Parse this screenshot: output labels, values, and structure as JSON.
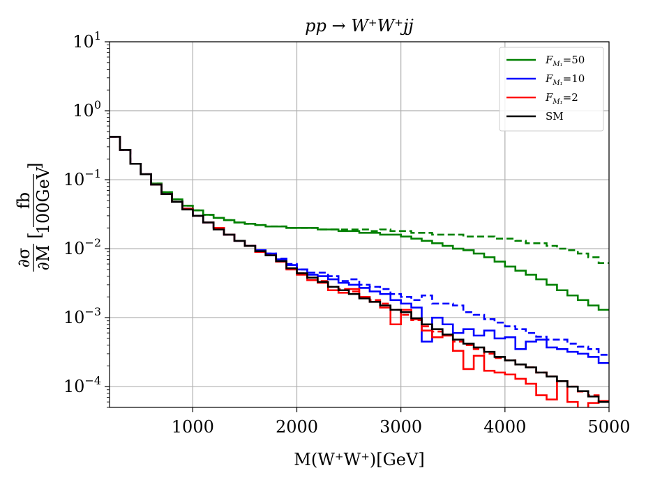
{
  "chart_data": {
    "type": "line",
    "step": true,
    "title": "pp → W⁺W⁺jj",
    "xlabel": "M(W⁺W⁺)[GeV]",
    "ylabel": "∂σ/∂M [fb/100GeV]",
    "ylabel_parts": {
      "numer": "∂σ",
      "denom": "∂M",
      "unit_numer": "fb",
      "unit_denom": "100GeV"
    },
    "xlim": [
      200,
      5000
    ],
    "ylim": [
      5e-05,
      10
    ],
    "yscale": "log",
    "grid": true,
    "legend_position": "top-right",
    "x_ticks": [
      1000,
      2000,
      3000,
      4000,
      5000
    ],
    "x_tick_labels": [
      "1000",
      "2000",
      "3000",
      "4000",
      "5000"
    ],
    "y_ticks": [
      0.0001,
      0.001,
      0.01,
      0.1,
      1,
      10
    ],
    "y_tick_labels": [
      {
        "base": "10",
        "exp": "−4"
      },
      {
        "base": "10",
        "exp": "−3"
      },
      {
        "base": "10",
        "exp": "−2"
      },
      {
        "base": "10",
        "exp": "−1"
      },
      {
        "base": "10",
        "exp": "0"
      },
      {
        "base": "10",
        "exp": "1"
      }
    ],
    "x_bin_edges": [
      200,
      300,
      400,
      500,
      600,
      700,
      800,
      900,
      1000,
      1100,
      1200,
      1300,
      1400,
      1500,
      1600,
      1700,
      1800,
      1900,
      2000,
      2100,
      2200,
      2300,
      2400,
      2500,
      2600,
      2700,
      2800,
      2900,
      3000,
      3100,
      3200,
      3300,
      3400,
      3500,
      3600,
      3700,
      3800,
      3900,
      4000,
      4100,
      4200,
      4300,
      4400,
      4500,
      4600,
      4700,
      4800,
      4900,
      5000
    ],
    "series": [
      {
        "name": "F_M1=50",
        "label_main": "F",
        "label_sub": "M₁",
        "label_value": "=50",
        "color": "#008000",
        "style": "solid",
        "values": [
          0.42,
          0.27,
          0.17,
          0.12,
          0.088,
          0.066,
          0.052,
          0.042,
          0.036,
          0.031,
          0.028,
          0.026,
          0.024,
          0.023,
          0.022,
          0.021,
          0.021,
          0.02,
          0.02,
          0.02,
          0.019,
          0.019,
          0.018,
          0.018,
          0.017,
          0.017,
          0.016,
          0.016,
          0.015,
          0.014,
          0.013,
          0.012,
          0.011,
          0.01,
          0.0095,
          0.0085,
          0.0075,
          0.0065,
          0.0055,
          0.0048,
          0.0042,
          0.0036,
          0.003,
          0.0025,
          0.0021,
          0.0018,
          0.0015,
          0.0013
        ]
      },
      {
        "name": "F_M1=50 (dashed)",
        "color": "#008000",
        "style": "dashed",
        "values": [
          0.42,
          0.27,
          0.17,
          0.12,
          0.088,
          0.066,
          0.052,
          0.042,
          0.036,
          0.031,
          0.028,
          0.026,
          0.024,
          0.023,
          0.022,
          0.021,
          0.021,
          0.02,
          0.02,
          0.02,
          0.019,
          0.019,
          0.019,
          0.019,
          0.019,
          0.018,
          0.019,
          0.018,
          0.018,
          0.017,
          0.017,
          0.016,
          0.016,
          0.016,
          0.015,
          0.015,
          0.015,
          0.014,
          0.014,
          0.013,
          0.012,
          0.012,
          0.011,
          0.01,
          0.0095,
          0.0085,
          0.0075,
          0.0062
        ]
      },
      {
        "name": "F_M1=10",
        "label_main": "F",
        "label_sub": "M₁",
        "label_value": "=10",
        "color": "#0000ff",
        "style": "solid",
        "values": [
          0.42,
          0.27,
          0.17,
          0.12,
          0.085,
          0.062,
          0.048,
          0.038,
          0.03,
          0.024,
          0.02,
          0.016,
          0.013,
          0.011,
          0.0095,
          0.0085,
          0.007,
          0.0058,
          0.005,
          0.0042,
          0.004,
          0.0036,
          0.0032,
          0.003,
          0.0027,
          0.0024,
          0.0022,
          0.0018,
          0.0016,
          0.0014,
          0.00045,
          0.001,
          0.0008,
          0.0006,
          0.00068,
          0.00055,
          0.00065,
          0.0005,
          0.00052,
          0.00035,
          0.00045,
          0.00048,
          0.00037,
          0.00035,
          0.00032,
          0.0003,
          0.00027,
          0.00022
        ]
      },
      {
        "name": "F_M1=10 (dashed)",
        "color": "#0000ff",
        "style": "dashed",
        "values": [
          0.42,
          0.27,
          0.17,
          0.12,
          0.085,
          0.062,
          0.048,
          0.038,
          0.03,
          0.024,
          0.02,
          0.016,
          0.013,
          0.011,
          0.0095,
          0.0085,
          0.0072,
          0.006,
          0.005,
          0.0045,
          0.0045,
          0.004,
          0.0034,
          0.0036,
          0.003,
          0.0028,
          0.0026,
          0.0022,
          0.002,
          0.0018,
          0.0021,
          0.0016,
          0.0016,
          0.0015,
          0.0012,
          0.0011,
          0.00095,
          0.00085,
          0.00075,
          0.00068,
          0.0006,
          0.00053,
          0.00048,
          0.00048,
          0.00042,
          0.00038,
          0.00035,
          0.00029
        ]
      },
      {
        "name": "F_M1=2",
        "label_main": "F",
        "label_sub": "M₁",
        "label_value": "=2",
        "color": "#ff0000",
        "style": "solid",
        "values": [
          0.42,
          0.27,
          0.17,
          0.12,
          0.085,
          0.062,
          0.048,
          0.038,
          0.03,
          0.024,
          0.02,
          0.016,
          0.013,
          0.011,
          0.009,
          0.008,
          0.0065,
          0.005,
          0.0042,
          0.0035,
          0.0032,
          0.0025,
          0.0023,
          0.0026,
          0.002,
          0.0017,
          0.0014,
          0.0008,
          0.0013,
          0.00095,
          0.00065,
          0.00052,
          0.00055,
          0.00033,
          0.00018,
          0.00028,
          0.00017,
          0.00016,
          0.00015,
          0.00013,
          0.00011,
          7.5e-05,
          6.5e-05,
          0.00012,
          6e-05,
          4.8e-05,
          5.8e-05,
          6.2e-05
        ]
      },
      {
        "name": "F_M1=2 (dashed)",
        "color": "#ff0000",
        "style": "dashed",
        "values": [
          0.42,
          0.27,
          0.17,
          0.12,
          0.085,
          0.062,
          0.048,
          0.038,
          0.03,
          0.024,
          0.02,
          0.016,
          0.013,
          0.011,
          0.0092,
          0.0082,
          0.0066,
          0.0052,
          0.0044,
          0.0038,
          0.0034,
          0.0028,
          0.0026,
          0.0024,
          0.002,
          0.0018,
          0.0016,
          0.0013,
          0.0011,
          0.00092,
          0.00075,
          0.00063,
          0.00055,
          0.00045,
          0.0004,
          0.00035,
          0.0003,
          0.00026,
          0.00024,
          0.00021,
          0.00019,
          0.00016,
          0.00014,
          0.00012,
          0.0001,
          8.5e-05,
          7.5e-05,
          6e-05
        ]
      },
      {
        "name": "SM",
        "label_main": "SM",
        "label_sub": "",
        "label_value": "",
        "color": "#000000",
        "style": "solid",
        "values": [
          0.42,
          0.27,
          0.17,
          0.12,
          0.085,
          0.062,
          0.048,
          0.037,
          0.03,
          0.024,
          0.019,
          0.016,
          0.013,
          0.011,
          0.0092,
          0.008,
          0.0066,
          0.0052,
          0.0044,
          0.0038,
          0.0033,
          0.0028,
          0.0025,
          0.0022,
          0.0019,
          0.0017,
          0.0015,
          0.0013,
          0.0012,
          0.00098,
          0.0008,
          0.00068,
          0.00057,
          0.00048,
          0.00042,
          0.00037,
          0.00032,
          0.00027,
          0.00024,
          0.00021,
          0.00019,
          0.00016,
          0.00014,
          0.00012,
          0.0001,
          8.6e-05,
          7.2e-05,
          6e-05
        ]
      }
    ],
    "legend_entries": [
      "F_M1=50",
      "F_M1=10",
      "F_M1=2",
      "SM"
    ]
  }
}
